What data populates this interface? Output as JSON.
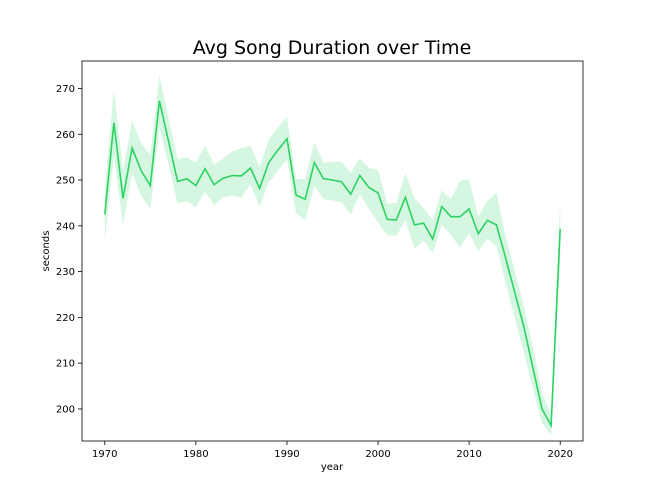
{
  "chart_data": {
    "type": "line",
    "title": "Avg Song Duration over Time",
    "xlabel": "year",
    "ylabel": "seconds",
    "xlim": [
      1967.5,
      2022.5
    ],
    "ylim": [
      193,
      276
    ],
    "grid": false,
    "legend": "none",
    "xticks": [
      1970,
      1980,
      1990,
      2000,
      2010,
      2020
    ],
    "yticks": [
      200,
      210,
      220,
      230,
      240,
      250,
      260,
      270
    ],
    "colors": {
      "line": "#2ed164",
      "band": "#2ed164"
    },
    "series": [
      {
        "x": [
          1970,
          1971,
          1972,
          1973,
          1974,
          1975,
          1976,
          1977,
          1978,
          1979,
          1980,
          1981,
          1982,
          1983,
          1984,
          1985,
          1986,
          1987,
          1988,
          1989,
          1990,
          1991,
          1992,
          1993,
          1994,
          1995,
          1996,
          1997,
          1998,
          1999,
          2000,
          2001,
          2002,
          2003,
          2004,
          2005,
          2006,
          2007,
          2008,
          2009,
          2010,
          2011,
          2012,
          2013,
          2014,
          2015,
          2016,
          2017,
          2018,
          2019,
          2020
        ],
        "values": [
          242.5,
          262.5,
          246,
          257,
          252,
          248.8,
          267.3,
          258.5,
          249.7,
          250.3,
          248.8,
          252.5,
          249,
          250.4,
          251,
          250.9,
          252.6,
          248.2,
          253.8,
          256.5,
          259,
          246.7,
          245.8,
          253.8,
          250.3,
          250,
          249.6,
          246.9,
          251,
          248.4,
          247.2,
          241.4,
          241.3,
          246.2,
          240.2,
          240.6,
          237.1,
          244.2,
          242,
          242,
          243.7,
          238.3,
          241.2,
          240.2,
          233,
          225.5,
          218,
          209,
          200,
          196.4,
          239.3
        ],
        "lower": [
          237,
          255.5,
          240,
          251.5,
          246.5,
          243.8,
          261.5,
          253.5,
          244.8,
          245.4,
          244,
          247.5,
          244.5,
          246.2,
          246.6,
          246.2,
          249,
          244.2,
          249.5,
          252,
          254.5,
          242.7,
          241.3,
          248.8,
          245.8,
          245.6,
          245.1,
          242.5,
          246.9,
          243.7,
          240.8,
          238,
          237.8,
          241.2,
          235,
          236.8,
          234,
          240.2,
          238,
          235.2,
          238.5,
          234.5,
          237.2,
          235.5,
          227.5,
          219.8,
          212.5,
          204.5,
          197,
          194.2,
          233.5
        ],
        "upper": [
          248,
          269.7,
          252,
          263,
          258,
          255.5,
          272.8,
          263.5,
          254.5,
          255,
          253.8,
          257.5,
          253.3,
          254.7,
          256.2,
          257,
          257.5,
          252.8,
          258.8,
          261.5,
          263.8,
          250.3,
          250.2,
          258.3,
          253.8,
          254,
          254,
          251.5,
          254.8,
          252.6,
          252.3,
          244.8,
          245,
          251.5,
          246,
          243.8,
          241.2,
          247.8,
          245.8,
          249.8,
          250.2,
          242,
          245.5,
          247.2,
          237.8,
          230.2,
          222.5,
          213.5,
          203.5,
          199,
          245.3
        ]
      }
    ]
  }
}
